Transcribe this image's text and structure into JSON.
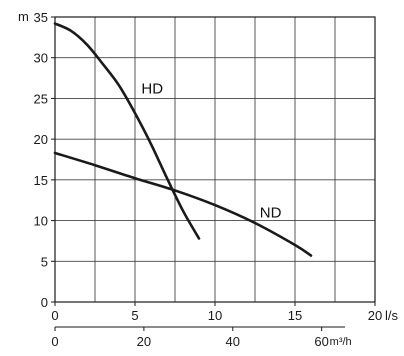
{
  "chart_data": {
    "type": "line",
    "title": "",
    "y_axis": {
      "unit_label": "m",
      "range": [
        0,
        35
      ],
      "ticks": [
        0,
        5,
        10,
        15,
        20,
        25,
        30,
        35
      ]
    },
    "x_axis_primary": {
      "unit_label": "l/s",
      "range": [
        0,
        20
      ],
      "ticks": [
        0,
        5,
        10,
        15,
        20
      ],
      "grid_step": 2.5
    },
    "x_axis_secondary": {
      "unit_label": "m³/h",
      "range": [
        0,
        72
      ],
      "ticks": [
        0,
        20,
        40,
        60
      ]
    },
    "grid": true,
    "series": [
      {
        "name": "HD",
        "color": "#1a1a1a",
        "x": [
          0,
          1,
          2,
          3,
          4,
          5,
          6,
          7,
          8,
          9
        ],
        "y": [
          34.2,
          33.3,
          31.6,
          29.2,
          26.6,
          23.2,
          19.4,
          15.2,
          11.2,
          7.8
        ]
      },
      {
        "name": "ND",
        "color": "#1a1a1a",
        "x": [
          0,
          2.5,
          5,
          7.5,
          10,
          12.5,
          15,
          16
        ],
        "y": [
          18.3,
          16.8,
          15.2,
          13.7,
          11.9,
          9.7,
          7.0,
          5.7
        ]
      }
    ]
  }
}
